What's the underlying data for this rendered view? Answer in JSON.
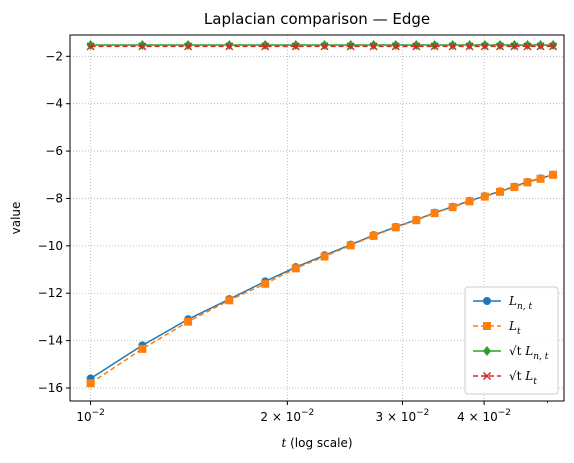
{
  "chart_data": {
    "type": "line",
    "title": "Laplacian comparison — Edge",
    "xlabel": "t (log scale)",
    "ylabel": "value",
    "xscale": "log",
    "grid": true,
    "legend_position": "bottom-right",
    "xlim": [
      0.0093,
      0.053
    ],
    "ylim": [
      -16.55,
      -1.1
    ],
    "yticks": [
      -16,
      -14,
      -12,
      -10,
      -8,
      -6,
      -4,
      -2
    ],
    "ytick_labels": [
      "−16",
      "−14",
      "−12",
      "−10",
      "−8",
      "−6",
      "−4",
      "−2"
    ],
    "xticks": [
      {
        "value": 0.01,
        "base": "10",
        "exp": "−2"
      },
      {
        "value": 0.02,
        "base": "2 × 10",
        "exp": "−2"
      },
      {
        "value": 0.03,
        "base": "3 × 10",
        "exp": "−2"
      },
      {
        "value": 0.04,
        "base": "4 × 10",
        "exp": "−2"
      }
    ],
    "x": [
      0.01,
      0.012,
      0.0141,
      0.0163,
      0.0185,
      0.0206,
      0.0228,
      0.025,
      0.0271,
      0.0293,
      0.0315,
      0.0336,
      0.0358,
      0.038,
      0.0401,
      0.0423,
      0.0445,
      0.0466,
      0.0488,
      0.051
    ],
    "series": [
      {
        "name": "L_{n,t}",
        "color": "#1f77b4",
        "linestyle": "solid",
        "marker": "circle",
        "values": [
          -15.6,
          -14.2,
          -13.1,
          -12.25,
          -11.5,
          -10.9,
          -10.4,
          -9.95,
          -9.55,
          -9.2,
          -8.9,
          -8.6,
          -8.35,
          -8.1,
          -7.9,
          -7.7,
          -7.5,
          -7.3,
          -7.15,
          -7.0
        ]
      },
      {
        "name": "L_t",
        "color": "#ff7f0e",
        "linestyle": "dashed",
        "marker": "square",
        "values": [
          -15.8,
          -14.35,
          -13.2,
          -12.3,
          -11.6,
          -10.95,
          -10.45,
          -9.98,
          -9.58,
          -9.22,
          -8.92,
          -8.62,
          -8.37,
          -8.12,
          -7.92,
          -7.72,
          -7.52,
          -7.32,
          -7.17,
          -7.0
        ]
      },
      {
        "name": "√t L_{n,t}",
        "color": "#2ca02c",
        "linestyle": "solid",
        "marker": "diamond",
        "values": [
          -1.52,
          -1.52,
          -1.52,
          -1.52,
          -1.52,
          -1.52,
          -1.52,
          -1.52,
          -1.52,
          -1.52,
          -1.52,
          -1.52,
          -1.52,
          -1.52,
          -1.52,
          -1.52,
          -1.52,
          -1.52,
          -1.52,
          -1.52
        ]
      },
      {
        "name": "√t L_t",
        "color": "#d62728",
        "linestyle": "dashed",
        "marker": "x",
        "values": [
          -1.58,
          -1.58,
          -1.58,
          -1.58,
          -1.58,
          -1.58,
          -1.58,
          -1.58,
          -1.58,
          -1.58,
          -1.58,
          -1.58,
          -1.58,
          -1.58,
          -1.58,
          -1.58,
          -1.58,
          -1.58,
          -1.58,
          -1.58
        ]
      }
    ]
  },
  "legend": [
    {
      "main": "L",
      "sub": "n, t",
      "prefix": ""
    },
    {
      "main": "L",
      "sub": "t",
      "prefix": ""
    },
    {
      "main": "L",
      "sub": "n, t",
      "prefix": "√t "
    },
    {
      "main": "L",
      "sub": "t",
      "prefix": "√t "
    }
  ]
}
